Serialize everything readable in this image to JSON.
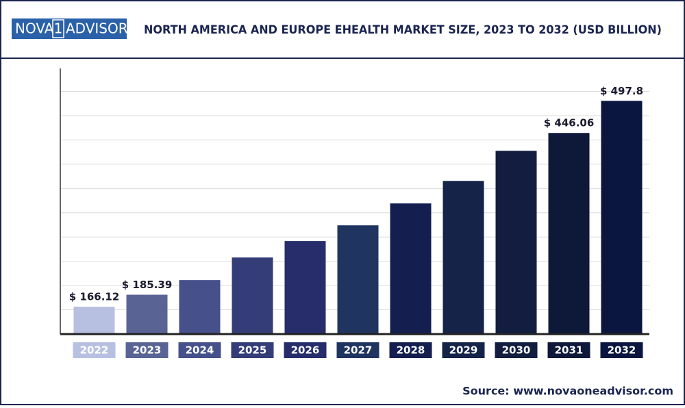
{
  "header": {
    "logo": [
      "NOVA",
      "1",
      "ADVISOR"
    ]
  },
  "chart_data": {
    "type": "bar",
    "title": "NORTH AMERICA AND EUROPE EHEALTH MARKET SIZE, 2023 TO 2032 (USD BILLION)",
    "categories": [
      "2022",
      "2023",
      "2024",
      "2025",
      "2026",
      "2027",
      "2028",
      "2029",
      "2030",
      "2031",
      "2032"
    ],
    "values": [
      166.12,
      185.39,
      209,
      245.4,
      271.9,
      297.2,
      332.5,
      368.8,
      417.3,
      446.06,
      497.8
    ],
    "value_labels": [
      "$ 166.12",
      "$ 185.39",
      null,
      null,
      null,
      null,
      null,
      null,
      null,
      "$ 446.06",
      "$ 497.8"
    ],
    "colors": [
      "#b8c0e2",
      "#5a6494",
      "#46508a",
      "#343d78",
      "#262d6a",
      "#1f3560",
      "#141f50",
      "#152349",
      "#121d40",
      "#0e1838",
      "#0b1640"
    ],
    "ylim": [
      122,
      550
    ],
    "yticks": [
      161.1,
      200.2,
      239.3,
      278.4,
      317.5,
      356.6,
      395.7,
      434.8,
      473.9,
      513
    ],
    "grid": true,
    "source": "Source: www.novaoneadvisor.com"
  }
}
